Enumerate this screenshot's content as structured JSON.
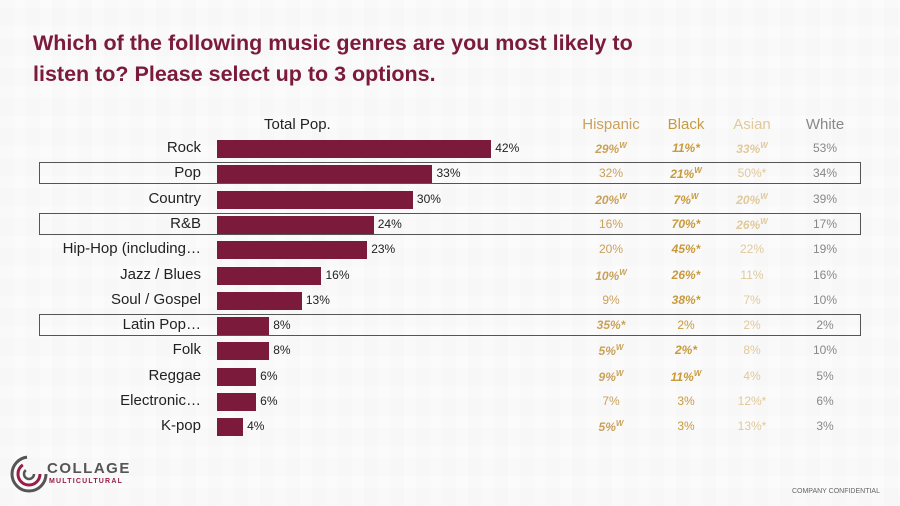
{
  "title": "Which of the following music genres are you most likely to listen to? Please select up to 3 options.",
  "logo": {
    "name": "COLLAGE",
    "sub": "MULTICULTURAL"
  },
  "footer": "COMPANY CONFIDENTIAL",
  "colors": {
    "bar": "#7b1a3b",
    "title": "#7b1a3b",
    "hispanic": "#c9a15a",
    "black": "#c89a3c",
    "asian": "#e0c99a",
    "white": "#888888"
  },
  "chart_data": {
    "type": "bar",
    "orientation": "horizontal",
    "title": "",
    "series_label": "Total Pop.",
    "categories": [
      "Rock",
      "Pop",
      "Country",
      "R&B",
      "Hip-Hop (including…",
      "Jazz / Blues",
      "Soul / Gospel",
      "Latin Pop…",
      "Folk",
      "Reggae",
      "Electronic…",
      "K-pop"
    ],
    "values": [
      42,
      33,
      30,
      24,
      23,
      16,
      13,
      8,
      8,
      6,
      6,
      4
    ],
    "value_labels": [
      "42%",
      "33%",
      "30%",
      "24%",
      "23%",
      "16%",
      "13%",
      "8%",
      "8%",
      "6%",
      "6%",
      "4%"
    ],
    "highlighted_rows": [
      "Pop",
      "R&B",
      "Latin Pop…"
    ],
    "table": {
      "columns": [
        "Hispanic",
        "Black",
        "Asian",
        "White"
      ],
      "rows": [
        [
          {
            "t": "29%",
            "s": "W",
            "b": true
          },
          {
            "t": "11%*",
            "s": "",
            "b": true
          },
          {
            "t": "33%",
            "s": "W",
            "b": true
          },
          {
            "t": "53%",
            "s": "",
            "b": false
          }
        ],
        [
          {
            "t": "32%",
            "s": "",
            "b": false
          },
          {
            "t": "21%",
            "s": "W",
            "b": true
          },
          {
            "t": "50%*",
            "s": "",
            "b": false
          },
          {
            "t": "34%",
            "s": "",
            "b": false
          }
        ],
        [
          {
            "t": "20%",
            "s": "W",
            "b": true
          },
          {
            "t": "7%",
            "s": "W",
            "b": true
          },
          {
            "t": "20%",
            "s": "W",
            "b": true
          },
          {
            "t": "39%",
            "s": "",
            "b": false
          }
        ],
        [
          {
            "t": "16%",
            "s": "",
            "b": false
          },
          {
            "t": "70%*",
            "s": "",
            "b": true
          },
          {
            "t": "26%",
            "s": "W",
            "b": true
          },
          {
            "t": "17%",
            "s": "",
            "b": false
          }
        ],
        [
          {
            "t": "20%",
            "s": "",
            "b": false
          },
          {
            "t": "45%*",
            "s": "",
            "b": true
          },
          {
            "t": "22%",
            "s": "",
            "b": false
          },
          {
            "t": "19%",
            "s": "",
            "b": false
          }
        ],
        [
          {
            "t": "10%",
            "s": "W",
            "b": true
          },
          {
            "t": "26%*",
            "s": "",
            "b": true
          },
          {
            "t": "11%",
            "s": "",
            "b": false
          },
          {
            "t": "16%",
            "s": "",
            "b": false
          }
        ],
        [
          {
            "t": "9%",
            "s": "",
            "b": false
          },
          {
            "t": "38%*",
            "s": "",
            "b": true
          },
          {
            "t": "7%",
            "s": "",
            "b": false
          },
          {
            "t": "10%",
            "s": "",
            "b": false
          }
        ],
        [
          {
            "t": "35%*",
            "s": "",
            "b": true
          },
          {
            "t": "2%",
            "s": "",
            "b": false
          },
          {
            "t": "2%",
            "s": "",
            "b": false
          },
          {
            "t": "2%",
            "s": "",
            "b": false
          }
        ],
        [
          {
            "t": "5%",
            "s": "W",
            "b": true
          },
          {
            "t": "2%*",
            "s": "",
            "b": true
          },
          {
            "t": "8%",
            "s": "",
            "b": false
          },
          {
            "t": "10%",
            "s": "",
            "b": false
          }
        ],
        [
          {
            "t": "9%",
            "s": "W",
            "b": true
          },
          {
            "t": "11%",
            "s": "W",
            "b": true
          },
          {
            "t": "4%",
            "s": "",
            "b": false
          },
          {
            "t": "5%",
            "s": "",
            "b": false
          }
        ],
        [
          {
            "t": "7%",
            "s": "",
            "b": false
          },
          {
            "t": "3%",
            "s": "",
            "b": false
          },
          {
            "t": "12%*",
            "s": "",
            "b": false
          },
          {
            "t": "6%",
            "s": "",
            "b": false
          }
        ],
        [
          {
            "t": "5%",
            "s": "W",
            "b": true
          },
          {
            "t": "3%",
            "s": "",
            "b": false
          },
          {
            "t": "13%*",
            "s": "",
            "b": false
          },
          {
            "t": "3%",
            "s": "",
            "b": false
          }
        ]
      ]
    }
  }
}
